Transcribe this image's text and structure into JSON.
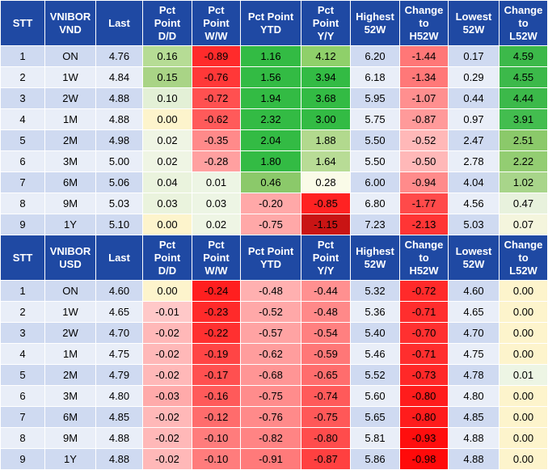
{
  "colors": {
    "header_bg": "#1f49a3",
    "header_text": "#ffffff",
    "row_odd": "#cfdaf1",
    "row_even": "#e9eef8"
  },
  "tables": [
    {
      "id": "vnd",
      "headers": [
        "STT",
        "VNIBOR\nVND",
        "Last",
        "Pct\nPoint\nD/D",
        "Pct\nPoint\nW/W",
        "Pct Point\nYTD",
        "Pct\nPoint\nY/Y",
        "Highest\n52W",
        "Change\nto\nH52W",
        "Lowest\n52W",
        "Change\nto\nL52W"
      ],
      "rows": [
        [
          "1",
          "ON",
          "4.76",
          "0.16",
          "-0.89",
          "1.16",
          "4.12",
          "6.20",
          "-1.44",
          "0.17",
          "4.59"
        ],
        [
          "2",
          "1W",
          "4.84",
          "0.15",
          "-0.76",
          "1.56",
          "3.94",
          "6.18",
          "-1.34",
          "0.29",
          "4.55"
        ],
        [
          "3",
          "2W",
          "4.88",
          "0.10",
          "-0.72",
          "1.94",
          "3.68",
          "5.95",
          "-1.07",
          "0.44",
          "4.44"
        ],
        [
          "4",
          "1M",
          "4.88",
          "0.00",
          "-0.62",
          "2.32",
          "3.00",
          "5.75",
          "-0.87",
          "0.97",
          "3.91"
        ],
        [
          "5",
          "2M",
          "4.98",
          "0.02",
          "-0.35",
          "2.04",
          "1.88",
          "5.50",
          "-0.52",
          "2.47",
          "2.51"
        ],
        [
          "6",
          "3M",
          "5.00",
          "0.02",
          "-0.28",
          "1.80",
          "1.64",
          "5.50",
          "-0.50",
          "2.78",
          "2.22"
        ],
        [
          "7",
          "6M",
          "5.06",
          "0.04",
          "0.01",
          "0.46",
          "0.28",
          "6.00",
          "-0.94",
          "4.04",
          "1.02"
        ],
        [
          "8",
          "9M",
          "5.03",
          "0.03",
          "0.03",
          "-0.20",
          "-0.85",
          "6.80",
          "-1.77",
          "4.56",
          "0.47"
        ],
        [
          "9",
          "1Y",
          "5.10",
          "0.00",
          "0.02",
          "-0.75",
          "-1.15",
          "7.23",
          "-2.13",
          "5.03",
          "0.07"
        ]
      ],
      "cell_colors": [
        [
          null,
          null,
          null,
          "#b6dc95",
          "#ff2b2b",
          "#33bb44",
          "#8fd06a",
          null,
          "#ff7777",
          null,
          "#3cb94a"
        ],
        [
          null,
          null,
          null,
          "#a9d486",
          "#ff3838",
          "#33bb44",
          "#33bb44",
          null,
          "#ff7878",
          null,
          "#3cb94a"
        ],
        [
          null,
          null,
          null,
          "#e3f0d6",
          "#ff5050",
          "#33bb44",
          "#33bb44",
          null,
          "#ff8f8f",
          null,
          "#3cb94a"
        ],
        [
          null,
          null,
          null,
          "#fdf4cc",
          "#ff5a5a",
          "#33bb44",
          "#33bb44",
          null,
          "#ff9a9a",
          null,
          "#43bd4f"
        ],
        [
          null,
          null,
          null,
          "#eff5e4",
          "#ff8a8a",
          "#33bb44",
          "#b2d98e",
          null,
          "#ffb8b8",
          null,
          "#8bc96a"
        ],
        [
          null,
          null,
          null,
          "#eff5e4",
          "#ffa0a0",
          "#33bb44",
          "#b8dc96",
          null,
          "#ffb8b8",
          null,
          "#93cd72"
        ],
        [
          null,
          null,
          null,
          "#eaf3dd",
          "#edf5e4",
          "#8bc96a",
          "#fafbe8",
          null,
          "#ff8b8b",
          null,
          "#a8d58a"
        ],
        [
          null,
          null,
          null,
          "#eaf3dd",
          "#edf5e4",
          "#ffa8a8",
          "#ff2222",
          null,
          "#ff4a4a",
          null,
          "#e8f2dd"
        ],
        [
          null,
          null,
          null,
          "#fdf4cc",
          "#eef5e4",
          "#ffa8a8",
          "#c91414",
          null,
          "#ff3535",
          null,
          "#f4f5dd"
        ]
      ]
    },
    {
      "id": "usd",
      "headers": [
        "STT",
        "VNIBOR\nUSD",
        "Last",
        "Pct\nPoint\nD/D",
        "Pct\nPoint\nW/W",
        "Pct Point\nYTD",
        "Pct\nPoint\nY/Y",
        "Highest\n52W",
        "Change\nto\nH52W",
        "Lowest\n52W",
        "Change\nto\nL52W"
      ],
      "rows": [
        [
          "1",
          "ON",
          "4.60",
          "0.00",
          "-0.24",
          "-0.48",
          "-0.44",
          "5.32",
          "-0.72",
          "4.60",
          "0.00"
        ],
        [
          "2",
          "1W",
          "4.65",
          "-0.01",
          "-0.23",
          "-0.52",
          "-0.48",
          "5.36",
          "-0.71",
          "4.65",
          "0.00"
        ],
        [
          "3",
          "2W",
          "4.70",
          "-0.02",
          "-0.22",
          "-0.57",
          "-0.54",
          "5.40",
          "-0.70",
          "4.70",
          "0.00"
        ],
        [
          "4",
          "1M",
          "4.75",
          "-0.02",
          "-0.19",
          "-0.62",
          "-0.59",
          "5.46",
          "-0.71",
          "4.75",
          "0.00"
        ],
        [
          "5",
          "2M",
          "4.79",
          "-0.02",
          "-0.17",
          "-0.68",
          "-0.65",
          "5.52",
          "-0.73",
          "4.78",
          "0.01"
        ],
        [
          "6",
          "3M",
          "4.80",
          "-0.03",
          "-0.16",
          "-0.75",
          "-0.74",
          "5.60",
          "-0.80",
          "4.80",
          "0.00"
        ],
        [
          "7",
          "6M",
          "4.85",
          "-0.02",
          "-0.12",
          "-0.76",
          "-0.75",
          "5.65",
          "-0.80",
          "4.85",
          "0.00"
        ],
        [
          "8",
          "9M",
          "4.88",
          "-0.02",
          "-0.10",
          "-0.82",
          "-0.80",
          "5.81",
          "-0.93",
          "4.88",
          "0.00"
        ],
        [
          "9",
          "1Y",
          "4.88",
          "-0.02",
          "-0.10",
          "-0.91",
          "-0.87",
          "5.86",
          "-0.98",
          "4.88",
          "0.00"
        ]
      ],
      "cell_colors": [
        [
          null,
          null,
          null,
          "#fdf4cc",
          "#ff1f1f",
          "#ffb0b0",
          "#ff9090",
          null,
          "#ff2a2a",
          null,
          "#fdf4cc"
        ],
        [
          null,
          null,
          null,
          "#ffc8c8",
          "#ff2a2a",
          "#ffa8a8",
          "#ff8989",
          null,
          "#ff2e2e",
          null,
          "#fdf4cc"
        ],
        [
          null,
          null,
          null,
          "#ffb8b8",
          "#ff3030",
          "#ffa3a3",
          "#ff8080",
          null,
          "#ff3030",
          null,
          "#fdf4cc"
        ],
        [
          null,
          null,
          null,
          "#ffb8b8",
          "#ff4545",
          "#ff9d9d",
          "#ff7777",
          null,
          "#ff2e2e",
          null,
          "#fdf4cc"
        ],
        [
          null,
          null,
          null,
          "#ffb8b8",
          "#ff5050",
          "#ff9595",
          "#ff6d6d",
          null,
          "#ff2828",
          null,
          "#edf5e4"
        ],
        [
          null,
          null,
          null,
          "#ffaaaa",
          "#ff5a5a",
          "#ff8c8c",
          "#ff5a5a",
          null,
          "#ff1c1c",
          null,
          "#fdf4cc"
        ],
        [
          null,
          null,
          null,
          "#ffb8b8",
          "#ff6c6c",
          "#ff8a8a",
          "#ff5858",
          null,
          "#ff1c1c",
          null,
          "#fdf4cc"
        ],
        [
          null,
          null,
          null,
          "#ffb8b8",
          "#ff7c7c",
          "#ff8484",
          "#ff4c4c",
          null,
          "#ff0e0e",
          null,
          "#fdf4cc"
        ],
        [
          null,
          null,
          null,
          "#ffb8b8",
          "#ff7c7c",
          "#ff7a7a",
          "#ff4040",
          null,
          "#ff0a0a",
          null,
          "#fdf4cc"
        ]
      ]
    }
  ]
}
